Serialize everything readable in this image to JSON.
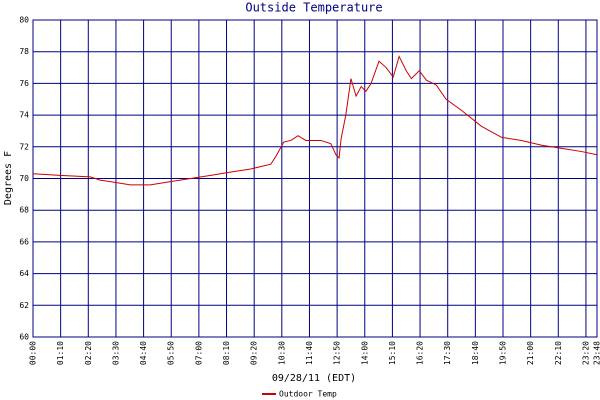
{
  "chart_data": {
    "type": "line",
    "title": "Outside Temperature",
    "x_label": "09/28/11 (EDT)",
    "y_label": "Degrees F",
    "xlim": [
      0,
      1428
    ],
    "ylim": [
      60,
      80
    ],
    "xticks": [
      {
        "value": 0,
        "label": "00:00"
      },
      {
        "value": 70,
        "label": "01:10"
      },
      {
        "value": 140,
        "label": "02:20"
      },
      {
        "value": 210,
        "label": "03:30"
      },
      {
        "value": 280,
        "label": "04:40"
      },
      {
        "value": 350,
        "label": "05:50"
      },
      {
        "value": 420,
        "label": "07:00"
      },
      {
        "value": 490,
        "label": "08:10"
      },
      {
        "value": 560,
        "label": "09:20"
      },
      {
        "value": 630,
        "label": "10:30"
      },
      {
        "value": 700,
        "label": "11:40"
      },
      {
        "value": 770,
        "label": "12:50"
      },
      {
        "value": 840,
        "label": "14:00"
      },
      {
        "value": 910,
        "label": "15:10"
      },
      {
        "value": 980,
        "label": "16:20"
      },
      {
        "value": 1050,
        "label": "17:30"
      },
      {
        "value": 1120,
        "label": "18:40"
      },
      {
        "value": 1190,
        "label": "19:50"
      },
      {
        "value": 1260,
        "label": "21:00"
      },
      {
        "value": 1330,
        "label": "22:10"
      },
      {
        "value": 1400,
        "label": "23:20"
      },
      {
        "value": 1428,
        "label": "23:48"
      }
    ],
    "yticks": [
      60,
      62,
      64,
      66,
      68,
      70,
      72,
      74,
      76,
      78,
      80
    ],
    "grid": true,
    "x": [
      0,
      68,
      145,
      170,
      196,
      246,
      297,
      348,
      399,
      450,
      500,
      551,
      602,
      615,
      635,
      653,
      671,
      691,
      729,
      754,
      767,
      775,
      780,
      792,
      805,
      818,
      831,
      843,
      856,
      876,
      894,
      912,
      927,
      945,
      958,
      978,
      996,
      1021,
      1046,
      1085,
      1135,
      1186,
      1237,
      1288,
      1339,
      1389,
      1428
    ],
    "series": [
      {
        "name": "Outdoor Temp",
        "color": "#cc0000",
        "values": [
          70.3,
          70.2,
          70.1,
          69.9,
          69.8,
          69.6,
          69.6,
          69.8,
          70.0,
          70.2,
          70.4,
          70.6,
          70.9,
          71.4,
          72.3,
          72.4,
          72.7,
          72.4,
          72.4,
          72.2,
          71.5,
          71.3,
          72.5,
          74.0,
          76.3,
          75.2,
          75.8,
          75.5,
          76.0,
          77.4,
          77.0,
          76.4,
          77.7,
          76.8,
          76.3,
          76.8,
          76.2,
          75.9,
          75.0,
          74.3,
          73.3,
          72.6,
          72.4,
          72.1,
          71.9,
          71.7,
          71.5
        ]
      }
    ]
  }
}
